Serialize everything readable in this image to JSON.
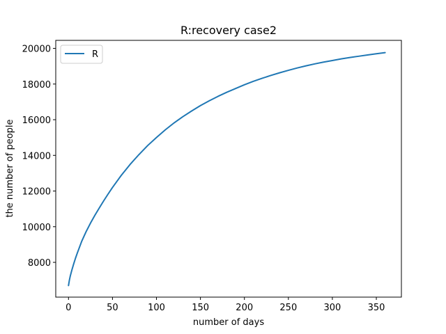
{
  "chart_data": {
    "type": "line",
    "title": "R:recovery  case2",
    "xlabel": "number of days",
    "ylabel": "the number of people",
    "xlim": [
      -14.5,
      378.5
    ],
    "ylim": [
      6050,
      20450
    ],
    "xticks": [
      0,
      50,
      100,
      150,
      200,
      250,
      300,
      350
    ],
    "yticks": [
      8000,
      10000,
      12000,
      14000,
      16000,
      18000,
      20000
    ],
    "grid": false,
    "legend": {
      "position": "top-left",
      "entries": [
        "R"
      ]
    },
    "series": [
      {
        "name": "R",
        "color": "#1f77b4",
        "x": [
          0,
          1,
          2,
          4,
          6,
          8,
          10,
          15,
          20,
          25,
          30,
          35,
          40,
          45,
          50,
          60,
          70,
          80,
          90,
          100,
          110,
          120,
          130,
          140,
          150,
          160,
          170,
          180,
          190,
          200,
          210,
          220,
          230,
          240,
          250,
          260,
          270,
          280,
          290,
          300,
          310,
          320,
          330,
          340,
          350,
          360
        ],
        "y": [
          6700,
          7000,
          7230,
          7600,
          7930,
          8240,
          8520,
          9180,
          9720,
          10200,
          10640,
          11050,
          11450,
          11830,
          12200,
          12880,
          13490,
          14040,
          14550,
          15000,
          15430,
          15820,
          16170,
          16490,
          16790,
          17060,
          17310,
          17540,
          17750,
          17960,
          18150,
          18320,
          18480,
          18630,
          18770,
          18900,
          19020,
          19130,
          19230,
          19320,
          19410,
          19490,
          19560,
          19630,
          19700,
          19760
        ]
      }
    ]
  }
}
